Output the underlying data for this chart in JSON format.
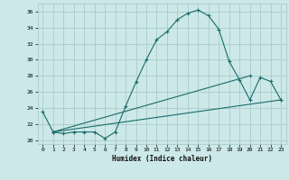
{
  "xlabel": "Humidex (Indice chaleur)",
  "bg_color": "#cce8e8",
  "grid_color": "#aacccc",
  "line_color": "#1a6b6b",
  "xlim": [
    -0.5,
    23.5
  ],
  "ylim": [
    19.5,
    37.0
  ],
  "xticks": [
    0,
    1,
    2,
    3,
    4,
    5,
    6,
    7,
    8,
    9,
    10,
    11,
    12,
    13,
    14,
    15,
    16,
    17,
    18,
    19,
    20,
    21,
    22,
    23
  ],
  "yticks": [
    20,
    22,
    24,
    26,
    28,
    30,
    32,
    34,
    36
  ],
  "line1_x": [
    0,
    1,
    2,
    3,
    4,
    5,
    6,
    7,
    8,
    9,
    10,
    11,
    12,
    13,
    14,
    15,
    16,
    17,
    18,
    19,
    20,
    21,
    22,
    23
  ],
  "line1_y": [
    23.5,
    21.0,
    20.8,
    21.0,
    21.0,
    21.0,
    20.2,
    21.0,
    24.2,
    27.2,
    30.0,
    32.5,
    33.5,
    35.0,
    35.8,
    36.2,
    35.5,
    33.8,
    29.8,
    27.5,
    25.0,
    27.8,
    27.3,
    25.0
  ],
  "line2_x": [
    1,
    20
  ],
  "line2_y": [
    21.0,
    28.0
  ],
  "line3_x": [
    1,
    23
  ],
  "line3_y": [
    21.0,
    25.0
  ]
}
